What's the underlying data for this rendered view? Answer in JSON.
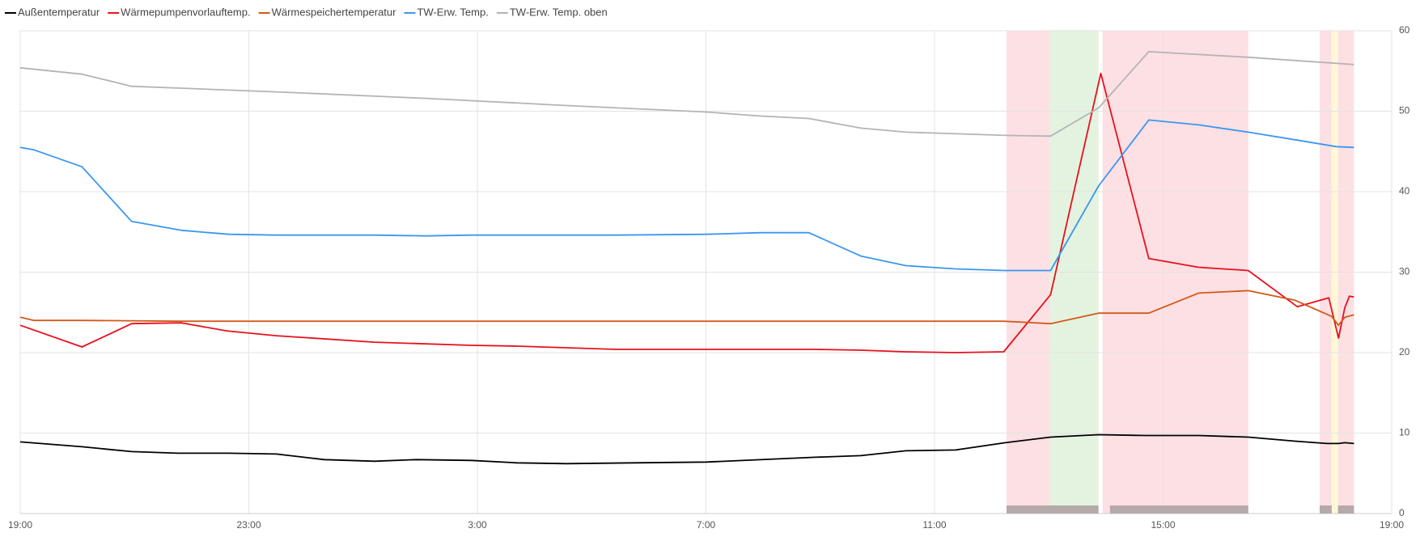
{
  "chart_data": {
    "type": "line",
    "xlim": [
      0,
      24
    ],
    "xticks": [
      {
        "value": 0,
        "label": "19:00"
      },
      {
        "value": 4,
        "label": "23:00"
      },
      {
        "value": 8,
        "label": "3:00"
      },
      {
        "value": 12,
        "label": "7:00"
      },
      {
        "value": 16,
        "label": "11:00"
      },
      {
        "value": 20,
        "label": "15:00"
      },
      {
        "value": 24,
        "label": "19:00"
      }
    ],
    "ylim": [
      0,
      60
    ],
    "yticks": [
      0,
      10,
      20,
      30,
      40,
      50,
      60
    ],
    "grid": true,
    "bands": [
      {
        "start": 17.26,
        "end": 18.02,
        "color": "#fde0e3"
      },
      {
        "start": 18.02,
        "end": 18.87,
        "color": "#e3f3e0"
      },
      {
        "start": 18.94,
        "end": 21.49,
        "color": "#fde0e3"
      },
      {
        "start": 22.74,
        "end": 22.95,
        "color": "#fde0e3"
      },
      {
        "start": 22.95,
        "end": 23.06,
        "color": "#fdf8d8"
      },
      {
        "start": 23.06,
        "end": 23.34,
        "color": "#fde0e3"
      }
    ],
    "status_bars": [
      {
        "start": 17.26,
        "end": 18.87,
        "color": "#b5a9a9"
      },
      {
        "start": 19.07,
        "end": 21.49,
        "color": "#b5a9a9"
      },
      {
        "start": 22.74,
        "end": 22.95,
        "color": "#b5a9a9"
      },
      {
        "start": 23.06,
        "end": 23.34,
        "color": "#b5a9a9"
      }
    ],
    "series": [
      {
        "name": "Außentemperatur",
        "color": "#000000",
        "x": [
          0,
          1.08,
          1.95,
          2.76,
          3.65,
          4.48,
          5.32,
          6.2,
          6.94,
          7.89,
          8.69,
          9.56,
          12.01,
          13.91,
          14.71,
          15.5,
          16.37,
          17.24,
          18.03,
          18.87,
          19.7,
          20.62,
          21.49,
          22.31,
          22.87,
          23.07,
          23.18,
          23.34
        ],
        "values": [
          8.9,
          8.3,
          7.7,
          7.5,
          7.5,
          7.4,
          6.7,
          6.5,
          6.7,
          6.6,
          6.3,
          6.2,
          6.4,
          7.0,
          7.2,
          7.8,
          7.9,
          8.8,
          9.5,
          9.8,
          9.7,
          9.7,
          9.5,
          9.0,
          8.7,
          8.7,
          8.8,
          8.7
        ]
      },
      {
        "name": "Wärmepumpenvorlauftemp.",
        "color": "#e8101c",
        "x": [
          0,
          1.08,
          1.95,
          2.82,
          3.61,
          4.48,
          6.2,
          7.89,
          8.69,
          9.56,
          10.43,
          13.91,
          14.71,
          15.5,
          16.37,
          17.21,
          18.03,
          18.91,
          19.75,
          20.62,
          21.49,
          22.35,
          22.9,
          23.07,
          23.18,
          23.26,
          23.34
        ],
        "values": [
          23.4,
          20.7,
          23.6,
          23.7,
          22.7,
          22.1,
          21.3,
          20.9,
          20.8,
          20.6,
          20.4,
          20.4,
          20.3,
          20.1,
          20.0,
          20.1,
          27.2,
          54.7,
          31.7,
          30.6,
          30.2,
          25.7,
          26.8,
          21.8,
          25.6,
          27.0,
          26.9
        ]
      },
      {
        "name": "Wärmespeichertemperatur",
        "color": "#d2581a",
        "x": [
          0,
          0.24,
          1.08,
          2.82,
          17.21,
          18.03,
          18.87,
          19.75,
          20.62,
          21.49,
          22.31,
          22.95,
          23.07,
          23.18,
          23.34
        ],
        "values": [
          24.4,
          24.0,
          24.0,
          23.9,
          23.9,
          23.6,
          24.9,
          24.9,
          27.4,
          27.7,
          26.5,
          24.5,
          23.4,
          24.4,
          24.7
        ]
      },
      {
        "name": "TW-Erw. Temp.",
        "color": "#3b96f0",
        "x": [
          0,
          0.24,
          1.08,
          1.95,
          2.82,
          3.65,
          4.48,
          6.2,
          7.1,
          7.89,
          10.43,
          12.01,
          12.96,
          13.8,
          14.71,
          15.5,
          16.37,
          17.24,
          18.03,
          18.87,
          19.75,
          20.62,
          21.49,
          22.35,
          23.03,
          23.34
        ],
        "values": [
          45.5,
          45.2,
          43.1,
          36.3,
          35.2,
          34.7,
          34.6,
          34.6,
          34.5,
          34.6,
          34.6,
          34.7,
          34.9,
          34.9,
          32.0,
          30.8,
          30.4,
          30.2,
          30.2,
          40.7,
          48.9,
          48.3,
          47.4,
          46.4,
          45.6,
          45.5
        ]
      },
      {
        "name": "TW-Erw. Temp. oben",
        "color": "#b4b4b4",
        "x": [
          0,
          1.08,
          1.95,
          4.48,
          7.1,
          9.56,
          12.01,
          12.96,
          13.8,
          14.71,
          15.5,
          17.24,
          18.03,
          18.87,
          19.75,
          21.49,
          22.31,
          23.34
        ],
        "values": [
          55.4,
          54.6,
          53.1,
          52.4,
          51.6,
          50.7,
          49.9,
          49.4,
          49.1,
          47.9,
          47.4,
          47.0,
          46.9,
          50.4,
          57.4,
          56.7,
          56.3,
          55.8
        ]
      }
    ]
  }
}
